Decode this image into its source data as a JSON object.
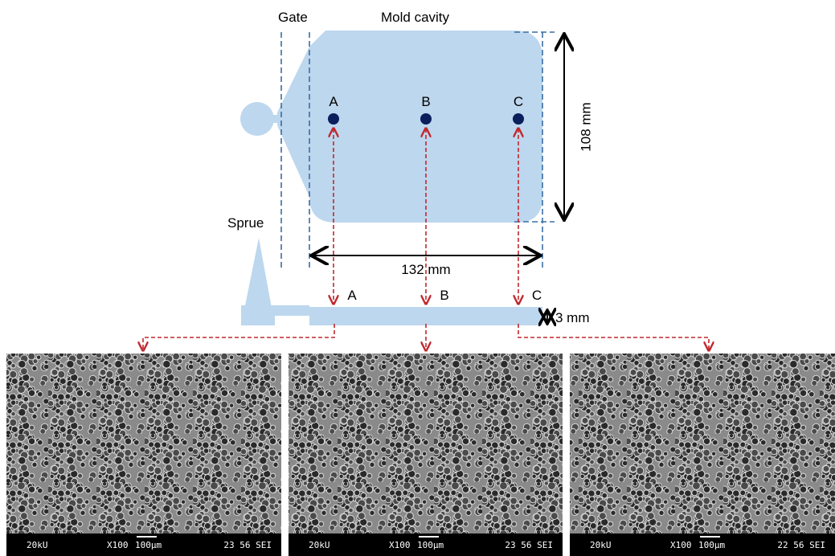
{
  "labels": {
    "gate": "Gate",
    "mold_cavity": "Mold cavity",
    "sprue": "Sprue",
    "points_top": [
      "A",
      "B",
      "C"
    ],
    "points_side": [
      "A",
      "B",
      "C"
    ],
    "height": "108 mm",
    "width": "132 mm",
    "thickness": "3 mm"
  },
  "micrographs": [
    {
      "voltage": "20kU",
      "magnification": "X100",
      "scale": "100µm",
      "info": "23 56 SEI"
    },
    {
      "voltage": "20kU",
      "magnification": "X100",
      "scale": "100µm",
      "info": "23 56 SEI"
    },
    {
      "voltage": "20kU",
      "magnification": "X100",
      "scale": "100µm",
      "info": "22 56 SEI"
    }
  ]
}
